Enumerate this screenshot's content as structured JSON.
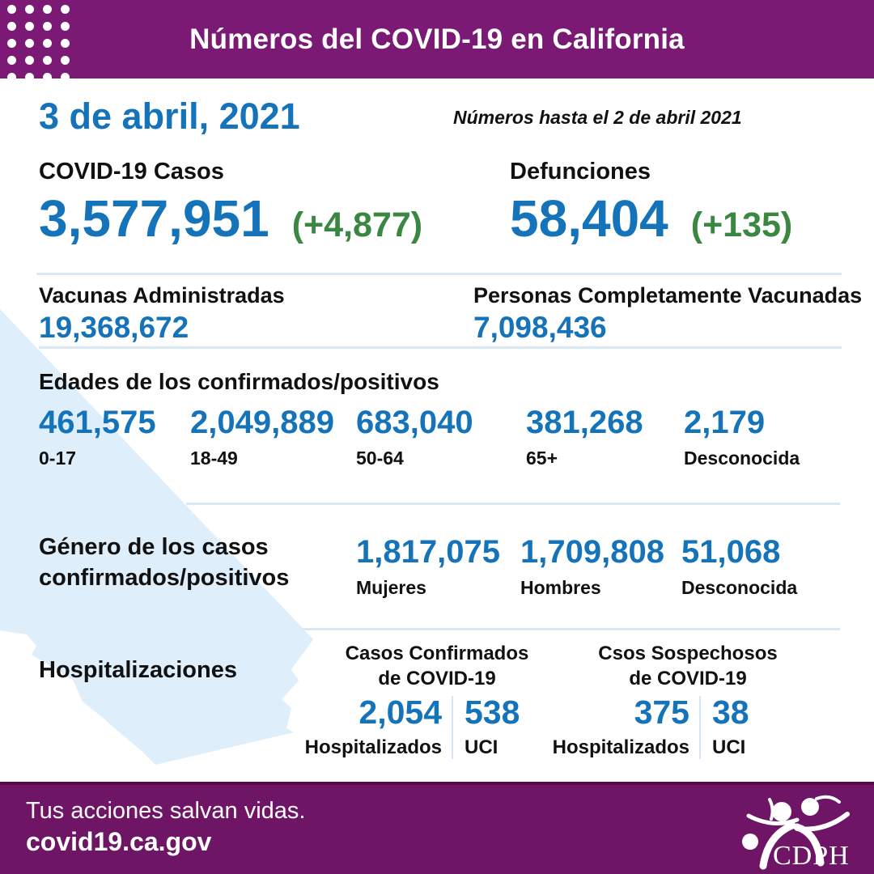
{
  "header": {
    "title": "Números del COVID-19 en California"
  },
  "date": {
    "main": "3 de abril, 2021",
    "note": "Números hasta el 2 de abril 2021"
  },
  "cases": {
    "label": "COVID-19 Casos",
    "value": "3,577,951",
    "delta": "(+4,877)"
  },
  "deaths": {
    "label": "Defunciones",
    "value": "58,404",
    "delta": "(+135)"
  },
  "vaccines": {
    "administered_label": "Vacunas Administradas",
    "administered_value": "19,368,672",
    "fully_label": "Personas Completamente Vacunadas",
    "fully_value": "7,098,436"
  },
  "ages": {
    "title": "Edades de los confirmados/positivos",
    "groups": [
      {
        "value": "461,575",
        "label": "0-17"
      },
      {
        "value": "2,049,889",
        "label": "18-49"
      },
      {
        "value": "683,040",
        "label": "50-64"
      },
      {
        "value": "381,268",
        "label": "65+"
      },
      {
        "value": "2,179",
        "label": "Desconocida"
      }
    ]
  },
  "gender": {
    "title": "Género de los casos confirmados/positivos",
    "groups": [
      {
        "value": "1,817,075",
        "label": "Mujeres"
      },
      {
        "value": "1,709,808",
        "label": "Hombres"
      },
      {
        "value": "51,068",
        "label": "Desconocida"
      }
    ]
  },
  "hospitalizations": {
    "title": "Hospitalizaciones",
    "groups": [
      {
        "heading": "Casos Confirmados de COVID-19",
        "hospitalized_value": "2,054",
        "hospitalized_label": "Hospitalizados",
        "icu_value": "538",
        "icu_label": "UCI"
      },
      {
        "heading": "Csos Sospechosos de COVID-19",
        "hospitalized_value": "375",
        "hospitalized_label": "Hospitalizados",
        "icu_value": "38",
        "icu_label": "UCI"
      }
    ]
  },
  "footer": {
    "message": "Tus acciones salvan vidas.",
    "url": "covid19.ca.gov",
    "logo_text": "CDPH"
  },
  "colors": {
    "purple_header": "#7A1A74",
    "purple_footer": "#6E1566",
    "footer_border": "#56094F",
    "blue": "#1573BA",
    "green": "#398741",
    "ink": "#111111",
    "map_blue": "#DEEEFA",
    "divider": "#D9E8F5"
  }
}
